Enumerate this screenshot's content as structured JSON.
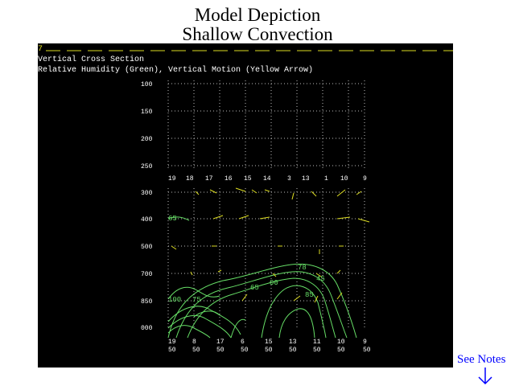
{
  "slide": {
    "title_line1": "Model Depiction",
    "title_line2": "Shallow Convection",
    "see_notes": "See Notes"
  },
  "plot": {
    "header_mark": "7",
    "title": "Vertical Cross Section",
    "subtitle": "Relative Humidity (Green), Vertical Motion (Yellow Arrow)",
    "pressure_levels": [
      "100",
      "150",
      "200",
      "250",
      "300",
      "400",
      "500",
      "700",
      "850",
      "000"
    ],
    "top_station_labels": [
      "19",
      "18",
      "17",
      "16",
      "15",
      "14",
      "3",
      "13",
      "1",
      "10",
      "9"
    ],
    "bottom_station_labels": [
      {
        "top": "19",
        "bottom": "50"
      },
      {
        "top": "8",
        "bottom": "50"
      },
      {
        "top": "17",
        "bottom": "50"
      },
      {
        "top": "6",
        "bottom": "50"
      },
      {
        "top": "15",
        "bottom": "50"
      },
      {
        "top": "13",
        "bottom": "50"
      },
      {
        "top": "11",
        "bottom": "50"
      },
      {
        "top": "10",
        "bottom": "50"
      },
      {
        "top": "9",
        "bottom": "50"
      }
    ],
    "contour_labels": [
      "65",
      "78",
      "00",
      "65",
      "85",
      "45",
      "100",
      "75"
    ],
    "colors": {
      "background": "#000000",
      "text": "#ffffff",
      "humidity": "#66dd66",
      "motion": "#dddd22",
      "grid": "#bbbbbb"
    }
  }
}
